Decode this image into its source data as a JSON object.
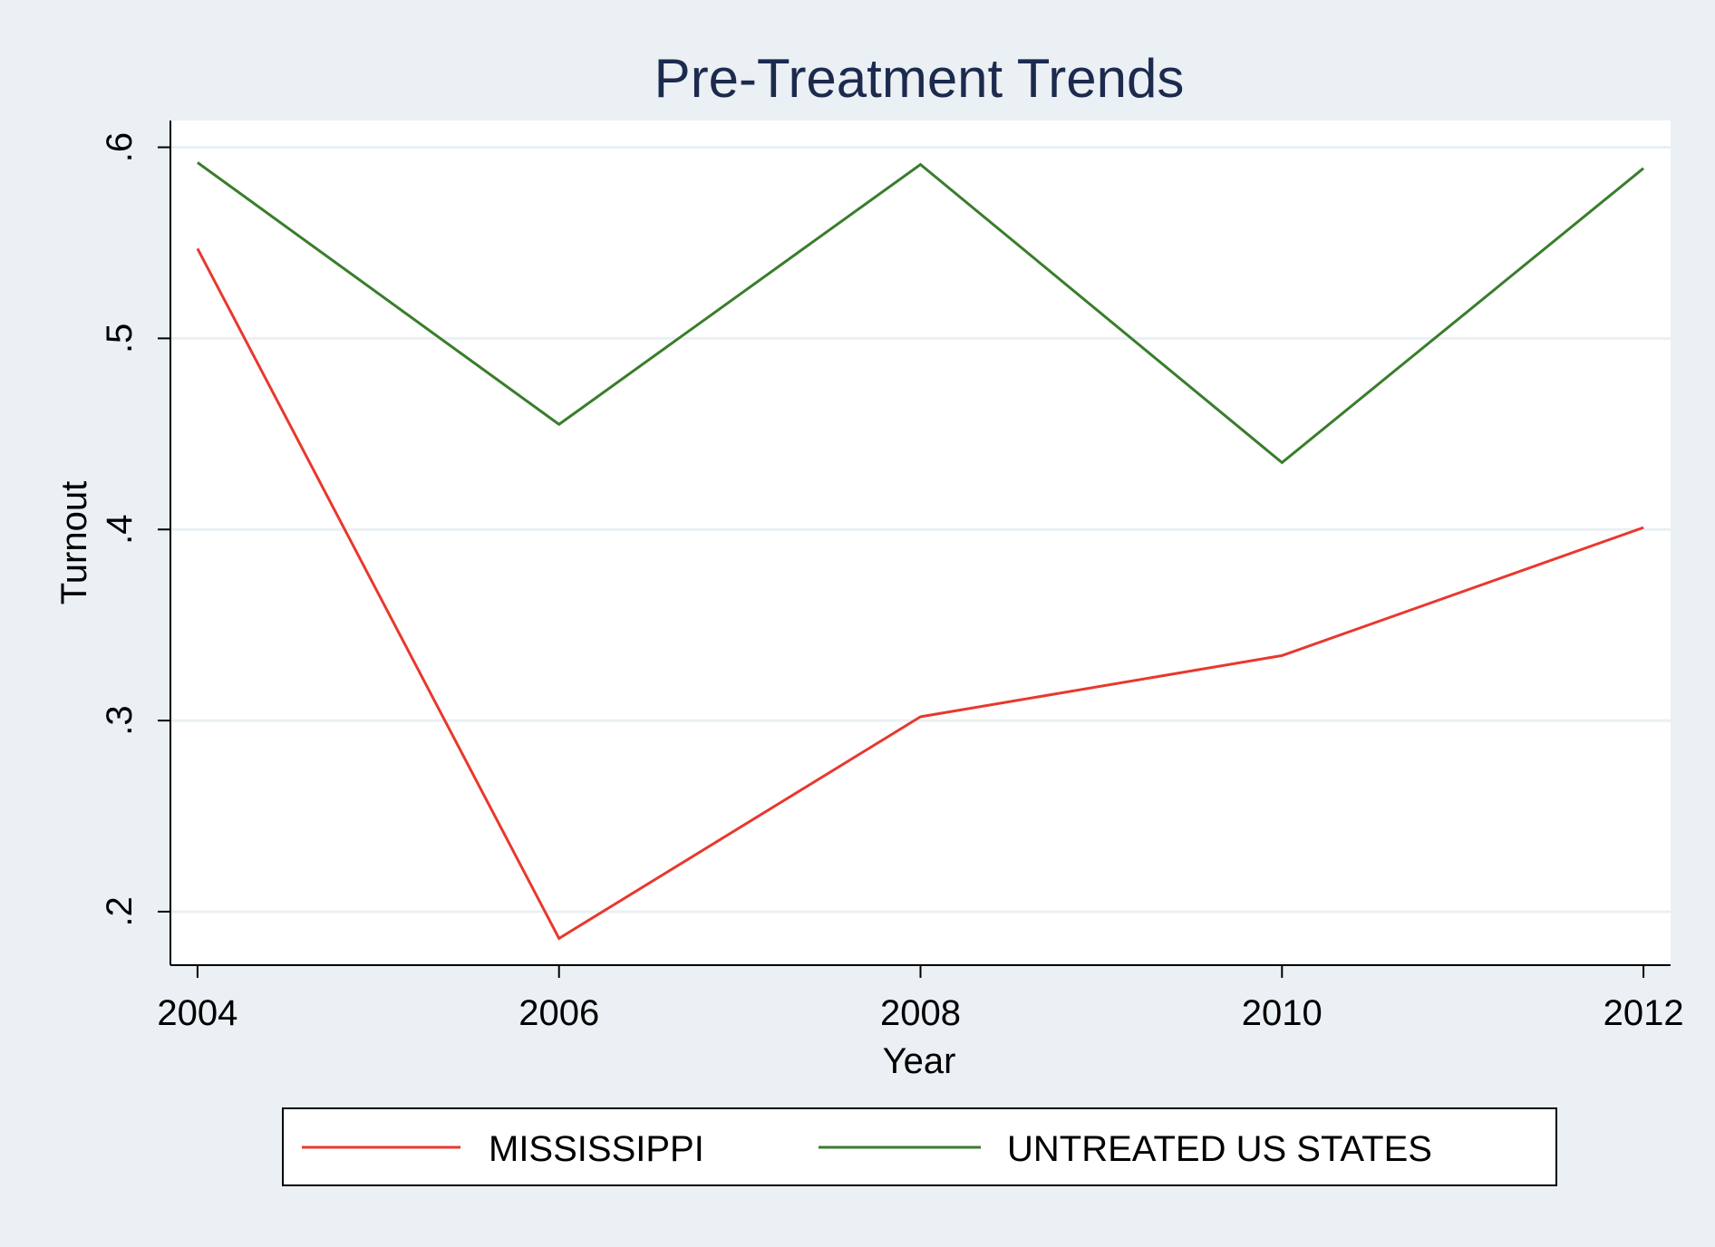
{
  "chart_data": {
    "type": "line",
    "title": "Pre-Treatment Trends",
    "xlabel": "Year",
    "ylabel": "Turnout",
    "x": [
      2004,
      2006,
      2008,
      2010,
      2012
    ],
    "xticks": [
      {
        "value": 2004,
        "label": "2004"
      },
      {
        "value": 2006,
        "label": "2006"
      },
      {
        "value": 2008,
        "label": "2008"
      },
      {
        "value": 2010,
        "label": "2010"
      },
      {
        "value": 2012,
        "label": "2012"
      }
    ],
    "yticks": [
      {
        "value": 0.2,
        "label": ".2"
      },
      {
        "value": 0.3,
        "label": ".3"
      },
      {
        "value": 0.4,
        "label": ".4"
      },
      {
        "value": 0.5,
        "label": ".5"
      },
      {
        "value": 0.6,
        "label": ".6"
      }
    ],
    "xlim": [
      2003.85,
      2012.15
    ],
    "ylim": [
      0.172,
      0.614
    ],
    "grid": true,
    "legend_position": "bottom",
    "series": [
      {
        "name": "MISSISSIPPI",
        "color": "#e8382d",
        "values": [
          0.547,
          0.186,
          0.302,
          0.334,
          0.401
        ]
      },
      {
        "name": "UNTREATED US STATES",
        "color": "#3a7d2c",
        "values": [
          0.592,
          0.455,
          0.591,
          0.435,
          0.589
        ]
      }
    ],
    "colors": {
      "background": "#eaf0f3",
      "plot_background": "#ffffff",
      "gridline": "#eaf0f3",
      "title": "#1c2a4e",
      "axis": "#000000"
    }
  }
}
